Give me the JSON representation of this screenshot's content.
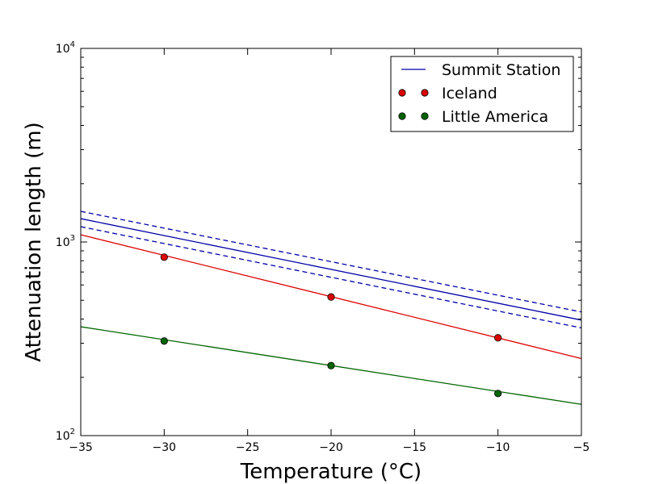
{
  "chart_data": {
    "type": "line",
    "title": "",
    "xlabel": "Temperature (°C)",
    "ylabel": "Attenuation length (m)",
    "xlim": [
      -35,
      -5
    ],
    "ylim": [
      100,
      10000
    ],
    "yscale": "log",
    "grid": false,
    "legend_position": "top-right",
    "x_ticks": [
      {
        "value": -35,
        "label": "−35"
      },
      {
        "value": -30,
        "label": "−30"
      },
      {
        "value": -25,
        "label": "−25"
      },
      {
        "value": -20,
        "label": "−20"
      },
      {
        "value": -15,
        "label": "−15"
      },
      {
        "value": -10,
        "label": "−10"
      },
      {
        "value": -5,
        "label": "−5"
      }
    ],
    "y_ticks": [
      {
        "value": 100,
        "base": "10",
        "exp": "2"
      },
      {
        "value": 1000,
        "base": "10",
        "exp": "3"
      },
      {
        "value": 10000,
        "base": "10",
        "exp": "4"
      }
    ],
    "series": [
      {
        "name": "Summit Station",
        "key": "summit-station",
        "color": "#0000aa",
        "style": "line",
        "x": [
          -35,
          -5
        ],
        "y": [
          1320,
          395
        ],
        "upper": [
          1440,
          435
        ],
        "lower": [
          1200,
          360
        ]
      },
      {
        "name": "Iceland",
        "key": "iceland",
        "color": "#dd0000",
        "style": "points+fit",
        "points": {
          "x": [
            -30,
            -20,
            -10
          ],
          "y": [
            835,
            520,
            320
          ]
        },
        "fit": {
          "x": [
            -35,
            -5
          ],
          "y": [
            1090,
            250
          ]
        }
      },
      {
        "name": "Little America",
        "key": "little-america",
        "color": "#006400",
        "style": "points+fit",
        "points": {
          "x": [
            -30,
            -20,
            -10
          ],
          "y": [
            308,
            230,
            165
          ]
        },
        "fit": {
          "x": [
            -35,
            -5
          ],
          "y": [
            365,
            145
          ]
        }
      }
    ]
  }
}
